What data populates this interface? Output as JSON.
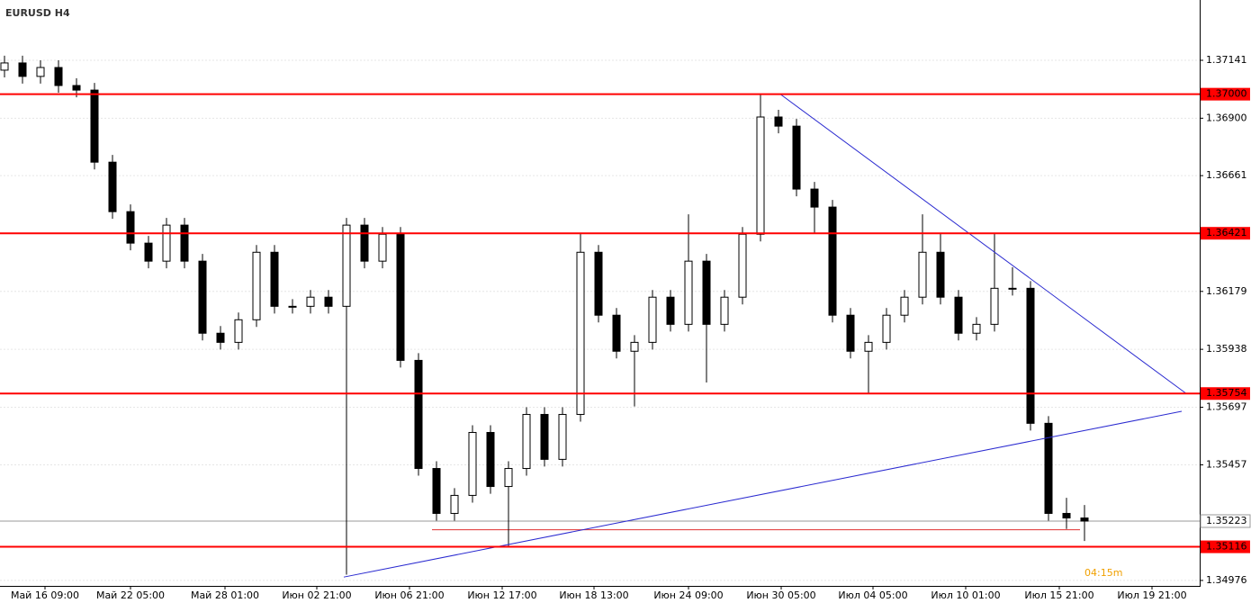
{
  "chart_data": {
    "type": "candlestick",
    "title": "EURUSD H4",
    "open": [
      1.371,
      1.3713,
      1.37074,
      1.37111,
      1.37036,
      1.37017,
      1.36717,
      1.36511,
      1.3638,
      1.36305,
      1.36455,
      1.36305,
      1.36005,
      1.35967,
      1.36061,
      1.36342,
      1.36117,
      1.36117,
      1.36155,
      1.36117,
      1.36455,
      1.36305,
      1.36417,
      1.35892,
      1.35442,
      1.35255,
      1.3533,
      1.35592,
      1.35367,
      1.35442,
      1.35667,
      1.3548,
      1.35667,
      1.36342,
      1.3608,
      1.3593,
      1.35967,
      1.36155,
      1.36042,
      1.36305,
      1.36042,
      1.36155,
      1.36417,
      1.36905,
      1.36867,
      1.36605,
      1.3653,
      1.3608,
      1.3593,
      1.35967,
      1.3608,
      1.36155,
      1.36342,
      1.36155,
      1.36005,
      1.36042,
      1.36192,
      1.36192,
      1.3563,
      1.35255,
      1.35236
    ],
    "high": [
      1.3716,
      1.3716,
      1.37141,
      1.37141,
      1.37066,
      1.37047,
      1.36747,
      1.36541,
      1.3641,
      1.36485,
      1.36485,
      1.36335,
      1.36035,
      1.36091,
      1.36372,
      1.36372,
      1.36147,
      1.36185,
      1.36185,
      1.36485,
      1.36485,
      1.36447,
      1.36447,
      1.35922,
      1.35472,
      1.3536,
      1.35622,
      1.35622,
      1.35472,
      1.35697,
      1.35697,
      1.35697,
      1.36421,
      1.36372,
      1.3611,
      1.35997,
      1.36185,
      1.36185,
      1.365,
      1.36335,
      1.36185,
      1.36447,
      1.37,
      1.36935,
      1.36897,
      1.36635,
      1.3656,
      1.3611,
      1.35997,
      1.3611,
      1.36185,
      1.365,
      1.36421,
      1.36185,
      1.36072,
      1.36421,
      1.3628,
      1.36222,
      1.3566,
      1.3532,
      1.3529
    ],
    "low": [
      1.3707,
      1.37044,
      1.37044,
      1.37006,
      1.36987,
      1.36687,
      1.36481,
      1.3635,
      1.36275,
      1.36275,
      1.36275,
      1.35975,
      1.35937,
      1.35937,
      1.36031,
      1.36087,
      1.36087,
      1.36087,
      1.36087,
      1.35,
      1.36275,
      1.36275,
      1.35862,
      1.35412,
      1.35225,
      1.35225,
      1.353,
      1.35337,
      1.35116,
      1.35412,
      1.3545,
      1.3545,
      1.35637,
      1.3605,
      1.359,
      1.357,
      1.35937,
      1.36012,
      1.36012,
      1.358,
      1.36012,
      1.36125,
      1.36387,
      1.36837,
      1.36575,
      1.36421,
      1.3605,
      1.359,
      1.35754,
      1.35937,
      1.3605,
      1.36125,
      1.36125,
      1.35975,
      1.35975,
      1.36012,
      1.36162,
      1.356,
      1.35225,
      1.3519,
      1.3514
    ],
    "close": [
      1.3713,
      1.37074,
      1.37111,
      1.37036,
      1.37017,
      1.36717,
      1.36511,
      1.3638,
      1.36305,
      1.36455,
      1.36305,
      1.36005,
      1.35967,
      1.36061,
      1.36342,
      1.36117,
      1.36117,
      1.36155,
      1.36117,
      1.36455,
      1.36305,
      1.36417,
      1.35892,
      1.35442,
      1.35255,
      1.3533,
      1.35592,
      1.35367,
      1.35442,
      1.35667,
      1.3548,
      1.35667,
      1.36342,
      1.3608,
      1.3593,
      1.35967,
      1.36155,
      1.36042,
      1.36305,
      1.36042,
      1.36155,
      1.36417,
      1.36905,
      1.36867,
      1.36605,
      1.3653,
      1.3608,
      1.3593,
      1.35967,
      1.3608,
      1.36155,
      1.36342,
      1.36155,
      1.36005,
      1.36042,
      1.36192,
      1.36192,
      1.3563,
      1.35255,
      1.35236,
      1.35223
    ],
    "bull_color": "#ffffff",
    "bear_color": "#000000",
    "xlim": [
      -0.25,
      66.4
    ],
    "xticks": [
      {
        "value": 2.25,
        "label": "Май 16 09:00"
      },
      {
        "value": 7,
        "label": "Май 22 05:00"
      },
      {
        "value": 12.25,
        "label": "Май 28 01:00"
      },
      {
        "value": 17.35,
        "label": "Июн 02 21:00"
      },
      {
        "value": 22.5,
        "label": "Июн 06 21:00"
      },
      {
        "value": 27.65,
        "label": "Июн 12 17:00"
      },
      {
        "value": 32.75,
        "label": "Июн 18 13:00"
      },
      {
        "value": 38,
        "label": "Июн 24 09:00"
      },
      {
        "value": 43.15,
        "label": "Июн 30 05:00"
      },
      {
        "value": 48.25,
        "label": "Июл 04 05:00"
      },
      {
        "value": 53.4,
        "label": "Июл 10 01:00"
      },
      {
        "value": 58.6,
        "label": "Июл 15 21:00"
      },
      {
        "value": 63.75,
        "label": "Июл 19 21:00"
      }
    ],
    "ylim": [
      1.34957,
      1.37392
    ],
    "yticks": [
      {
        "value": 1.37141,
        "label": "1.37141"
      },
      {
        "value": 1.369,
        "label": "1.36900"
      },
      {
        "value": 1.36661,
        "label": "1.36661"
      },
      {
        "value": 1.36179,
        "label": "1.36179"
      },
      {
        "value": 1.35938,
        "label": "1.35938"
      },
      {
        "value": 1.35697,
        "label": "1.35697"
      },
      {
        "value": 1.35457,
        "label": "1.35457"
      },
      {
        "value": 1.34976,
        "label": "1.34976"
      }
    ],
    "grid": true,
    "levels": [
      {
        "value": 1.37,
        "label": "1.37000",
        "color": "#ff0000"
      },
      {
        "value": 1.36421,
        "label": "1.36421",
        "color": "#ff0000"
      },
      {
        "value": 1.35754,
        "label": "1.35754",
        "color": "#ff0000"
      },
      {
        "value": 1.35116,
        "label": "1.35116",
        "color": "#ff0000"
      }
    ],
    "segments": [
      {
        "value": 1.36421,
        "x": [
          31.9,
          66.4
        ],
        "color": "#e03030"
      },
      {
        "value": 1.35187,
        "x": [
          23.75,
          59.75
        ],
        "color": "#e03030"
      }
    ],
    "current_price": {
      "value": 1.35223,
      "label": "1.35223",
      "color": "#999999"
    },
    "trendlines": [
      {
        "x": [
          43.1,
          65.65
        ],
        "y": [
          1.37,
          1.35754
        ],
        "color": "#2a2ad0"
      },
      {
        "x": [
          18.85,
          65.4
        ],
        "y": [
          1.3499,
          1.3568
        ],
        "color": "#2a2ad0"
      }
    ],
    "timer": "04:15m"
  }
}
